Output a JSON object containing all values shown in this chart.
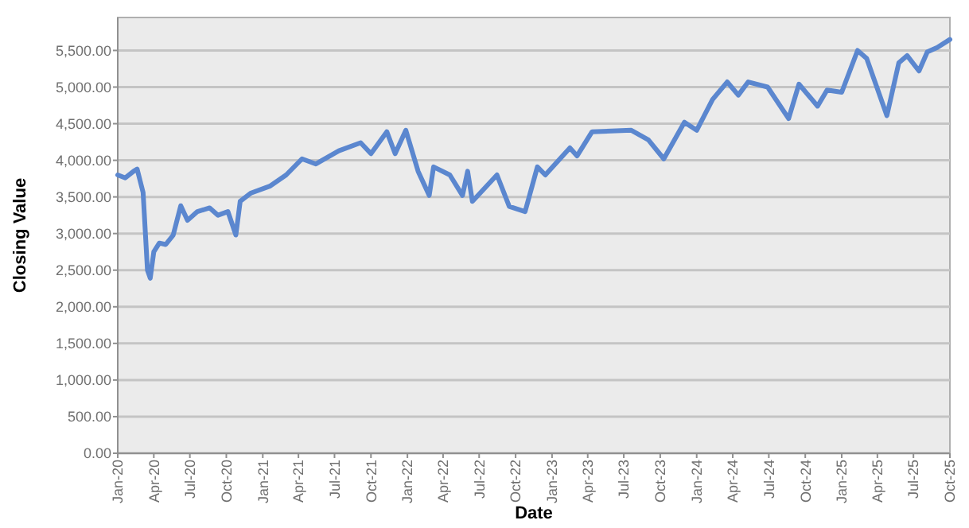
{
  "chart_data": {
    "type": "line",
    "xlabel": "Date",
    "ylabel": "Closing Value",
    "grid": "y",
    "marker": "none",
    "line_style": "solid",
    "xlim": [
      "2020-01-01",
      "2025-10-01"
    ],
    "ylim": [
      0,
      5950
    ],
    "xticks": [
      {
        "value": "2020-01-01",
        "label": "Jan-20"
      },
      {
        "value": "2020-04-01",
        "label": "Apr-20"
      },
      {
        "value": "2020-07-01",
        "label": "Jul-20"
      },
      {
        "value": "2020-10-01",
        "label": "Oct-20"
      },
      {
        "value": "2021-01-01",
        "label": "Jan-21"
      },
      {
        "value": "2021-04-01",
        "label": "Apr-21"
      },
      {
        "value": "2021-07-01",
        "label": "Jul-21"
      },
      {
        "value": "2021-10-01",
        "label": "Oct-21"
      },
      {
        "value": "2022-01-01",
        "label": "Jan-22"
      },
      {
        "value": "2022-04-01",
        "label": "Apr-22"
      },
      {
        "value": "2022-07-01",
        "label": "Jul-22"
      },
      {
        "value": "2022-10-01",
        "label": "Oct-22"
      },
      {
        "value": "2023-01-01",
        "label": "Jan-23"
      },
      {
        "value": "2023-04-01",
        "label": "Apr-23"
      },
      {
        "value": "2023-07-01",
        "label": "Jul-23"
      },
      {
        "value": "2023-10-01",
        "label": "Oct-23"
      },
      {
        "value": "2024-01-01",
        "label": "Jan-24"
      },
      {
        "value": "2024-04-01",
        "label": "Apr-24"
      },
      {
        "value": "2024-07-01",
        "label": "Jul-24"
      },
      {
        "value": "2024-10-01",
        "label": "Oct-24"
      },
      {
        "value": "2025-01-01",
        "label": "Jan-25"
      },
      {
        "value": "2025-04-01",
        "label": "Apr-25"
      },
      {
        "value": "2025-07-01",
        "label": "Jul-25"
      },
      {
        "value": "2025-10-01",
        "label": "Oct-25"
      }
    ],
    "yticks": [
      {
        "value": 0,
        "label": "0.00"
      },
      {
        "value": 500,
        "label": "500.00"
      },
      {
        "value": 1000,
        "label": "1,000.00"
      },
      {
        "value": 1500,
        "label": "1,500.00"
      },
      {
        "value": 2000,
        "label": "2,000.00"
      },
      {
        "value": 2500,
        "label": "2,500.00"
      },
      {
        "value": 3000,
        "label": "3,000.00"
      },
      {
        "value": 3500,
        "label": "3,500.00"
      },
      {
        "value": 4000,
        "label": "4,000.00"
      },
      {
        "value": 4500,
        "label": "4,500.00"
      },
      {
        "value": 5000,
        "label": "5,000.00"
      },
      {
        "value": 5500,
        "label": "5,500.00"
      }
    ],
    "x": [
      "2020-01-01",
      "2020-01-20",
      "2020-02-10",
      "2020-02-19",
      "2020-03-05",
      "2020-03-16",
      "2020-03-23",
      "2020-04-01",
      "2020-04-15",
      "2020-05-01",
      "2020-05-20",
      "2020-06-08",
      "2020-06-25",
      "2020-07-20",
      "2020-08-20",
      "2020-09-10",
      "2020-10-05",
      "2020-10-25",
      "2020-11-05",
      "2020-12-01",
      "2021-01-20",
      "2021-03-01",
      "2021-04-10",
      "2021-05-15",
      "2021-07-12",
      "2021-09-05",
      "2021-10-01",
      "2021-11-10",
      "2021-12-01",
      "2021-12-28",
      "2022-01-28",
      "2022-02-25",
      "2022-03-08",
      "2022-04-18",
      "2022-05-20",
      "2022-06-02",
      "2022-06-14",
      "2022-08-15",
      "2022-09-15",
      "2022-10-25",
      "2022-11-25",
      "2022-12-15",
      "2023-02-15",
      "2023-03-05",
      "2023-04-12",
      "2023-07-20",
      "2023-09-01",
      "2023-10-10",
      "2023-12-01",
      "2024-01-01",
      "2024-02-10",
      "2024-03-18",
      "2024-04-15",
      "2024-05-10",
      "2024-06-28",
      "2024-08-20",
      "2024-09-15",
      "2024-11-01",
      "2024-11-25",
      "2025-01-01",
      "2025-02-10",
      "2025-03-05",
      "2025-04-25",
      "2025-05-25",
      "2025-06-15",
      "2025-07-15",
      "2025-08-05",
      "2025-08-30",
      "2025-10-01"
    ],
    "series": [
      {
        "color": "#5b87cf",
        "values": [
          3800,
          3760,
          3850,
          3880,
          3560,
          2500,
          2390,
          2750,
          2870,
          2850,
          2980,
          3380,
          3180,
          3300,
          3350,
          3250,
          3300,
          2980,
          3440,
          3550,
          3650,
          3800,
          4020,
          3950,
          4130,
          4240,
          4090,
          4390,
          4090,
          4410,
          3850,
          3520,
          3910,
          3800,
          3520,
          3850,
          3440,
          3800,
          3370,
          3300,
          3910,
          3800,
          4170,
          4060,
          4390,
          4410,
          4280,
          4020,
          4520,
          4410,
          4830,
          5070,
          4890,
          5070,
          5000,
          4570,
          5040,
          4740,
          4960,
          4930,
          5500,
          5390,
          4610,
          5330,
          5430,
          5220,
          5480,
          5540,
          5650
        ]
      }
    ]
  }
}
